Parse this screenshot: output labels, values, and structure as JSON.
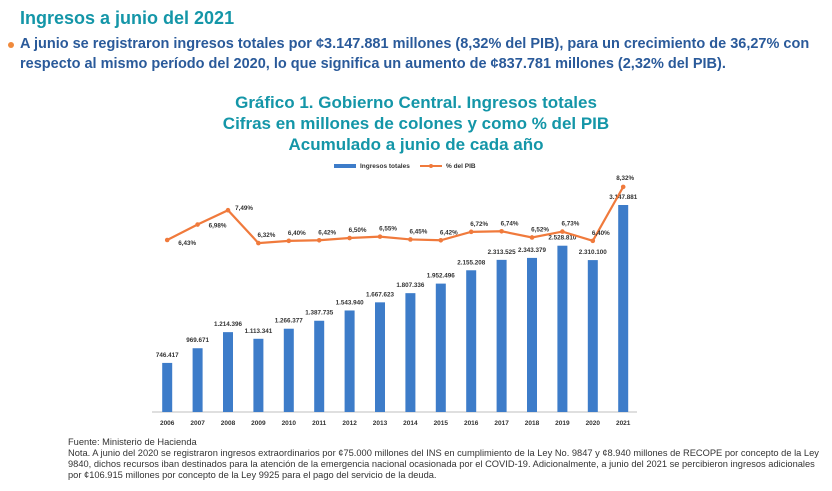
{
  "header": {
    "title": "Ingresos a junio del 2021",
    "bullet": "A junio se registraron ingresos totales por ¢3.147.881 millones (8,32% del PIB), para un crecimiento de 36,27% con respecto al mismo período del 2020, lo que significa un aumento de ¢837.781 millones (2,32% del PIB)."
  },
  "chart_data": {
    "type": "bar",
    "title": "Gráfico 1. Gobierno Central. Ingresos totales",
    "subtitle": [
      "Cifras en millones de colones y como % del PIB",
      "Acumulado a junio de cada año"
    ],
    "categories": [
      "2006",
      "2007",
      "2008",
      "2009",
      "2010",
      "2011",
      "2012",
      "2013",
      "2014",
      "2015",
      "2016",
      "2017",
      "2018",
      "2019",
      "2020",
      "2021"
    ],
    "series": [
      {
        "name": "Ingresos totales",
        "type": "bar",
        "color": "#3d7cc9",
        "values": [
          746417,
          969671,
          1214396,
          1113341,
          1266377,
          1387735,
          1543940,
          1667623,
          1807336,
          1952496,
          2155208,
          2313525,
          2343379,
          2528810,
          2310100,
          3147881
        ],
        "labels": [
          "746.417",
          "969.671",
          "1.214.396",
          "1.113.341",
          "1.266.377",
          "1.387.735",
          "1.543.940",
          "1.667.623",
          "1.807.336",
          "1.952.496",
          "2.155.208",
          "2.313.525",
          "2.343.379",
          "2.528.810",
          "2.310.100",
          "3.147.881"
        ]
      },
      {
        "name": "% del PIB",
        "type": "line",
        "color": "#f07a3c",
        "values": [
          6.43,
          6.98,
          7.49,
          6.32,
          6.4,
          6.42,
          6.5,
          6.55,
          6.45,
          6.42,
          6.72,
          6.74,
          6.52,
          6.73,
          6.4,
          8.32
        ],
        "labels": [
          "6,43%",
          "6,98%",
          "7,49%",
          "6,32%",
          "6,40%",
          "6,42%",
          "6,50%",
          "6,55%",
          "6,45%",
          "6,42%",
          "6,72%",
          "6,74%",
          "6,52%",
          "6,73%",
          "6,40%",
          "8,32%"
        ]
      }
    ],
    "legend_position": "top",
    "grid": false
  },
  "footer": {
    "source": "Fuente: Ministerio de Hacienda",
    "note": "Nota. A junio del 2020 se registraron ingresos extraordinarios por ¢75.000 millones del INS en cumplimiento de la Ley No. 9847 y ¢8.940 millones de RECOPE por concepto de la Ley 9840, dichos recursos iban destinados para la atención de la emergencia nacional ocasionada por el COVID-19. Adicionalmente, a junio del 2021 se percibieron ingresos adicionales por ¢106.915 millones por concepto de la Ley 9925 para el pago del servicio de la deuda."
  }
}
